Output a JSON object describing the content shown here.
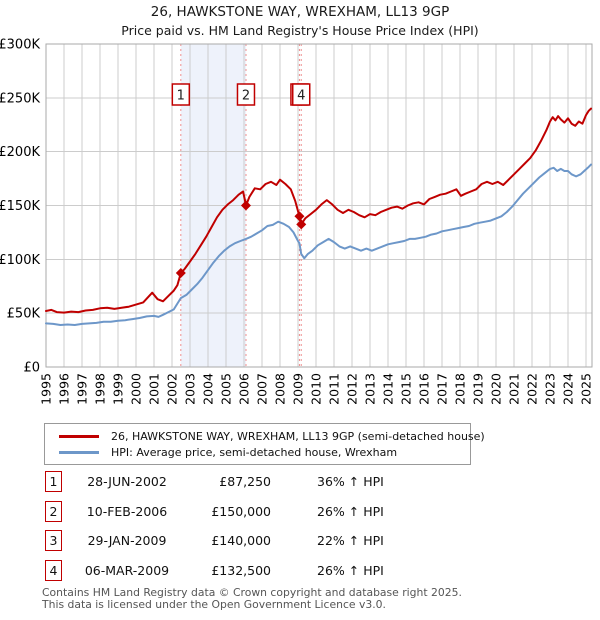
{
  "header": {
    "title": "26, HAWKSTONE WAY, WREXHAM, LL13 9GP",
    "subtitle": "Price paid vs. HM Land Registry's House Price Index (HPI)"
  },
  "chart_data": {
    "type": "line",
    "title": "26, HAWKSTONE WAY, WREXHAM, LL13 9GP — Price paid vs. HPI",
    "grid": true,
    "legend_position": "below",
    "colors": {
      "grid": "#cccccc",
      "border": "#aaaaaa",
      "dashed_marker": "#ee8e8e",
      "band": "#eef2fb",
      "sale_marker": "#c00000",
      "marker_box_border": "#c00000",
      "marker_box_text": "#222222"
    },
    "x_axis": {
      "label": "",
      "min": 1995,
      "max": 2025.33,
      "ticks": [
        1995,
        1996,
        1997,
        1998,
        1999,
        2000,
        2001,
        2002,
        2003,
        2004,
        2005,
        2006,
        2007,
        2008,
        2009,
        2010,
        2011,
        2012,
        2013,
        2014,
        2015,
        2016,
        2017,
        2018,
        2019,
        2020,
        2021,
        2022,
        2023,
        2024,
        2025
      ]
    },
    "y_axis": {
      "label": "",
      "min": 0,
      "max": 300,
      "unit": "£K",
      "ticks": [
        {
          "label": "£0",
          "value": 0
        },
        {
          "label": "£50K",
          "value": 50
        },
        {
          "label": "£100K",
          "value": 100
        },
        {
          "label": "£150K",
          "value": 150
        },
        {
          "label": "£200K",
          "value": 200
        },
        {
          "label": "£250K",
          "value": 250
        },
        {
          "label": "£300K",
          "value": 300
        }
      ]
    },
    "shaded_band": {
      "from_year": 2002.49,
      "to_year": 2006.11,
      "color": "#eef2fb"
    },
    "series": [
      {
        "name": "26, HAWKSTONE WAY, WREXHAM, LL13 9GP (semi-detached house)",
        "color": "#c00000",
        "data_name": "price-paid-line",
        "points": [
          [
            1995.0,
            52
          ],
          [
            1995.3,
            53
          ],
          [
            1995.6,
            51
          ],
          [
            1996.0,
            50.5
          ],
          [
            1996.4,
            51.5
          ],
          [
            1996.8,
            51
          ],
          [
            1997.2,
            52.5
          ],
          [
            1997.6,
            53
          ],
          [
            1998.0,
            54.5
          ],
          [
            1998.4,
            55
          ],
          [
            1998.8,
            54
          ],
          [
            1999.2,
            55
          ],
          [
            1999.6,
            56
          ],
          [
            2000.0,
            58
          ],
          [
            2000.4,
            60
          ],
          [
            2000.9,
            69
          ],
          [
            2001.2,
            63
          ],
          [
            2001.5,
            61
          ],
          [
            2001.8,
            66
          ],
          [
            2002.1,
            71
          ],
          [
            2002.3,
            76
          ],
          [
            2002.49,
            87.25
          ],
          [
            2002.7,
            91
          ],
          [
            2003.0,
            98
          ],
          [
            2003.3,
            105
          ],
          [
            2003.6,
            113
          ],
          [
            2003.9,
            121
          ],
          [
            2004.2,
            130
          ],
          [
            2004.5,
            139
          ],
          [
            2004.8,
            146
          ],
          [
            2005.1,
            151
          ],
          [
            2005.4,
            155
          ],
          [
            2005.7,
            160
          ],
          [
            2005.95,
            163
          ],
          [
            2006.11,
            150
          ],
          [
            2006.3,
            158
          ],
          [
            2006.6,
            166
          ],
          [
            2006.9,
            165
          ],
          [
            2007.2,
            170
          ],
          [
            2007.5,
            172
          ],
          [
            2007.8,
            169
          ],
          [
            2008.0,
            174
          ],
          [
            2008.3,
            170
          ],
          [
            2008.6,
            165
          ],
          [
            2008.85,
            154
          ],
          [
            2009.08,
            140
          ],
          [
            2009.18,
            132.5
          ],
          [
            2009.4,
            138
          ],
          [
            2009.7,
            142
          ],
          [
            2010.0,
            146
          ],
          [
            2010.3,
            151
          ],
          [
            2010.6,
            155
          ],
          [
            2010.9,
            151
          ],
          [
            2011.2,
            146
          ],
          [
            2011.5,
            143
          ],
          [
            2011.8,
            146
          ],
          [
            2012.1,
            144
          ],
          [
            2012.4,
            141
          ],
          [
            2012.7,
            139
          ],
          [
            2013.0,
            142
          ],
          [
            2013.3,
            141
          ],
          [
            2013.6,
            144
          ],
          [
            2013.9,
            146
          ],
          [
            2014.2,
            148
          ],
          [
            2014.5,
            149
          ],
          [
            2014.8,
            147
          ],
          [
            2015.1,
            150
          ],
          [
            2015.4,
            152
          ],
          [
            2015.7,
            153
          ],
          [
            2016.0,
            151
          ],
          [
            2016.3,
            156
          ],
          [
            2016.6,
            158
          ],
          [
            2016.9,
            160
          ],
          [
            2017.2,
            161
          ],
          [
            2017.5,
            163
          ],
          [
            2017.8,
            165
          ],
          [
            2018.05,
            159
          ],
          [
            2018.3,
            161
          ],
          [
            2018.6,
            163
          ],
          [
            2018.9,
            165
          ],
          [
            2019.2,
            170
          ],
          [
            2019.5,
            172
          ],
          [
            2019.8,
            170
          ],
          [
            2020.1,
            172
          ],
          [
            2020.4,
            169
          ],
          [
            2020.7,
            174
          ],
          [
            2021.0,
            179
          ],
          [
            2021.3,
            184
          ],
          [
            2021.6,
            189
          ],
          [
            2021.9,
            194
          ],
          [
            2022.2,
            201
          ],
          [
            2022.5,
            210
          ],
          [
            2022.8,
            220
          ],
          [
            2023.0,
            228
          ],
          [
            2023.15,
            232
          ],
          [
            2023.3,
            229
          ],
          [
            2023.45,
            233
          ],
          [
            2023.6,
            230
          ],
          [
            2023.8,
            227
          ],
          [
            2024.0,
            231
          ],
          [
            2024.2,
            226
          ],
          [
            2024.4,
            224
          ],
          [
            2024.6,
            228
          ],
          [
            2024.8,
            226
          ],
          [
            2025.0,
            234
          ],
          [
            2025.15,
            238
          ],
          [
            2025.28,
            240
          ]
        ]
      },
      {
        "name": "HPI: Average price, semi-detached house, Wrexham",
        "color": "#6d97c9",
        "data_name": "hpi-line",
        "points": [
          [
            1995.0,
            40.5
          ],
          [
            1995.4,
            40
          ],
          [
            1995.8,
            39
          ],
          [
            1996.2,
            39.5
          ],
          [
            1996.6,
            39
          ],
          [
            1997.0,
            40
          ],
          [
            1997.4,
            40.5
          ],
          [
            1997.8,
            41
          ],
          [
            1998.2,
            42
          ],
          [
            1998.6,
            42
          ],
          [
            1999.0,
            43
          ],
          [
            1999.4,
            43.5
          ],
          [
            1999.8,
            44.5
          ],
          [
            2000.2,
            45.5
          ],
          [
            2000.6,
            47
          ],
          [
            2001.0,
            47.5
          ],
          [
            2001.25,
            46.5
          ],
          [
            2001.5,
            48.5
          ],
          [
            2001.8,
            51
          ],
          [
            2002.1,
            53.5
          ],
          [
            2002.49,
            64
          ],
          [
            2002.8,
            67
          ],
          [
            2003.1,
            72
          ],
          [
            2003.4,
            77
          ],
          [
            2003.7,
            83
          ],
          [
            2004.0,
            90
          ],
          [
            2004.3,
            97
          ],
          [
            2004.6,
            103
          ],
          [
            2004.9,
            108
          ],
          [
            2005.2,
            112
          ],
          [
            2005.5,
            115
          ],
          [
            2005.8,
            117
          ],
          [
            2006.11,
            119
          ],
          [
            2006.4,
            121
          ],
          [
            2006.7,
            124
          ],
          [
            2007.0,
            127
          ],
          [
            2007.3,
            131
          ],
          [
            2007.6,
            132
          ],
          [
            2007.9,
            135
          ],
          [
            2008.2,
            133
          ],
          [
            2008.5,
            130
          ],
          [
            2008.75,
            125
          ],
          [
            2009.0,
            117
          ],
          [
            2009.08,
            115
          ],
          [
            2009.18,
            105
          ],
          [
            2009.35,
            101
          ],
          [
            2009.55,
            105
          ],
          [
            2009.8,
            108
          ],
          [
            2010.1,
            113
          ],
          [
            2010.4,
            116
          ],
          [
            2010.7,
            119
          ],
          [
            2011.0,
            116
          ],
          [
            2011.3,
            112
          ],
          [
            2011.6,
            110
          ],
          [
            2011.9,
            112
          ],
          [
            2012.2,
            110
          ],
          [
            2012.5,
            108
          ],
          [
            2012.8,
            110
          ],
          [
            2013.1,
            108
          ],
          [
            2013.4,
            110
          ],
          [
            2013.7,
            112
          ],
          [
            2014.0,
            114
          ],
          [
            2014.3,
            115
          ],
          [
            2014.6,
            116
          ],
          [
            2014.9,
            117
          ],
          [
            2015.2,
            119
          ],
          [
            2015.5,
            119
          ],
          [
            2015.8,
            120
          ],
          [
            2016.1,
            121
          ],
          [
            2016.4,
            123
          ],
          [
            2016.7,
            124
          ],
          [
            2017.0,
            126
          ],
          [
            2017.3,
            127
          ],
          [
            2017.6,
            128
          ],
          [
            2017.9,
            129
          ],
          [
            2018.2,
            130
          ],
          [
            2018.5,
            131
          ],
          [
            2018.8,
            133
          ],
          [
            2019.1,
            134
          ],
          [
            2019.4,
            135
          ],
          [
            2019.7,
            136
          ],
          [
            2020.0,
            138
          ],
          [
            2020.3,
            140
          ],
          [
            2020.6,
            144
          ],
          [
            2020.9,
            149
          ],
          [
            2021.2,
            155
          ],
          [
            2021.5,
            161
          ],
          [
            2021.8,
            166
          ],
          [
            2022.1,
            171
          ],
          [
            2022.4,
            176
          ],
          [
            2022.7,
            180
          ],
          [
            2023.0,
            184
          ],
          [
            2023.2,
            185
          ],
          [
            2023.4,
            182
          ],
          [
            2023.6,
            184
          ],
          [
            2023.8,
            182
          ],
          [
            2024.0,
            182
          ],
          [
            2024.2,
            179
          ],
          [
            2024.45,
            177
          ],
          [
            2024.7,
            179
          ],
          [
            2024.9,
            182
          ],
          [
            2025.1,
            185
          ],
          [
            2025.28,
            188
          ]
        ]
      }
    ],
    "sale_markers": [
      {
        "label": "1",
        "year": 2002.49,
        "value": 87.25
      },
      {
        "label": "2",
        "year": 2006.11,
        "value": 150
      },
      {
        "label": "3",
        "year": 2009.08,
        "value": 140
      },
      {
        "label": "4",
        "year": 2009.18,
        "value": 132.5
      }
    ]
  },
  "legend": {
    "entries": [
      {
        "label": "26, HAWKSTONE WAY, WREXHAM, LL13 9GP (semi-detached house)",
        "color": "#c00000"
      },
      {
        "label": "HPI: Average price, semi-detached house, Wrexham",
        "color": "#6d97c9"
      }
    ]
  },
  "sales_table": {
    "rows": [
      {
        "num": "1",
        "date": "28-JUN-2002",
        "price": "£87,250",
        "vs_hpi": "36% ↑ HPI"
      },
      {
        "num": "2",
        "date": "10-FEB-2006",
        "price": "£150,000",
        "vs_hpi": "26% ↑ HPI"
      },
      {
        "num": "3",
        "date": "29-JAN-2009",
        "price": "£140,000",
        "vs_hpi": "22% ↑ HPI"
      },
      {
        "num": "4",
        "date": "06-MAR-2009",
        "price": "£132,500",
        "vs_hpi": "26% ↑ HPI"
      }
    ]
  },
  "footer": {
    "line1": "Contains HM Land Registry data © Crown copyright and database right 2025.",
    "line2": "This data is licensed under the Open Government Licence v3.0."
  }
}
